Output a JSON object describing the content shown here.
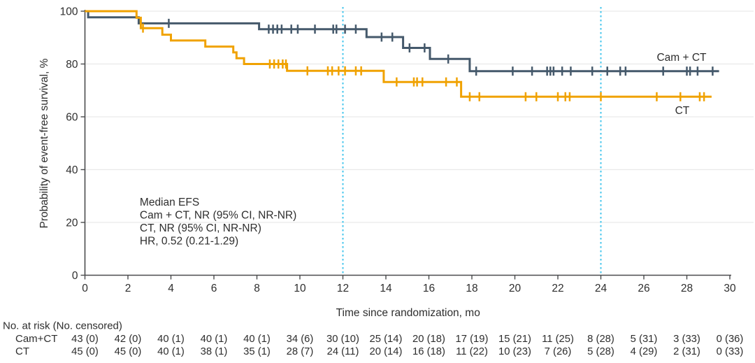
{
  "figure": {
    "background": "#ffffff",
    "text_color": "#2e2e2e",
    "axis_color": "#4a4b4d",
    "gridline_color": "#e9e9e9"
  },
  "chart_data": {
    "type": "km_step",
    "title": "",
    "xlabel": "Time since randomization, mo",
    "ylabel": "Probability of event-free survival, %",
    "xlim": [
      0,
      30
    ],
    "xticks": [
      0,
      2,
      4,
      6,
      8,
      10,
      12,
      14,
      16,
      18,
      20,
      22,
      24,
      26,
      28,
      30
    ],
    "ylim": [
      0,
      100
    ],
    "yticks": [
      0,
      20,
      40,
      60,
      80,
      100
    ],
    "grid": {
      "horizontal_at": [
        20,
        40,
        60,
        80,
        100
      ]
    },
    "reference_lines_x": {
      "values": [
        12,
        24
      ],
      "style": "dotted",
      "color": "#45c6ec"
    },
    "series": [
      {
        "name": "Cam + CT",
        "color": "#45596b",
        "steps": [
          [
            0,
            100
          ],
          [
            0.15,
            97.7
          ],
          [
            2.5,
            95.4
          ],
          [
            8.1,
            93.2
          ],
          [
            13.1,
            90.2
          ],
          [
            14.8,
            86.1
          ],
          [
            16.05,
            81.9
          ],
          [
            17.9,
            77.3
          ]
        ],
        "end_x": 29.5,
        "censor_marks": [
          [
            3.9,
            95.4
          ],
          [
            8.55,
            93.2
          ],
          [
            8.75,
            93.2
          ],
          [
            8.95,
            93.2
          ],
          [
            9.15,
            93.2
          ],
          [
            9.6,
            93.2
          ],
          [
            9.9,
            93.2
          ],
          [
            10.7,
            93.2
          ],
          [
            11.55,
            93.2
          ],
          [
            11.7,
            93.2
          ],
          [
            12.1,
            93.2
          ],
          [
            12.6,
            93.2
          ],
          [
            13.8,
            90.2
          ],
          [
            14.3,
            90.2
          ],
          [
            15.1,
            86.1
          ],
          [
            15.8,
            86.1
          ],
          [
            16.9,
            81.9
          ],
          [
            18.2,
            77.3
          ],
          [
            19.9,
            77.3
          ],
          [
            20.8,
            77.3
          ],
          [
            21.5,
            77.3
          ],
          [
            21.65,
            77.3
          ],
          [
            21.8,
            77.3
          ],
          [
            22.2,
            77.3
          ],
          [
            22.6,
            77.3
          ],
          [
            23.6,
            77.3
          ],
          [
            24.3,
            77.3
          ],
          [
            24.9,
            77.3
          ],
          [
            25.15,
            77.3
          ],
          [
            26.9,
            77.3
          ],
          [
            28.0,
            77.3
          ],
          [
            28.15,
            77.3
          ],
          [
            28.5,
            77.3
          ],
          [
            29.2,
            77.3
          ]
        ],
        "label": {
          "text": "Cam + CT",
          "x": 26.6,
          "y": 81.2
        }
      },
      {
        "name": "CT",
        "color": "#f0a202",
        "steps": [
          [
            0,
            100
          ],
          [
            2.4,
            97.5
          ],
          [
            2.6,
            93.6
          ],
          [
            3.6,
            91.1
          ],
          [
            4.0,
            88.9
          ],
          [
            5.6,
            86.6
          ],
          [
            6.9,
            84.4
          ],
          [
            7.05,
            82.2
          ],
          [
            7.4,
            80.0
          ],
          [
            9.4,
            77.4
          ],
          [
            13.9,
            73.2
          ],
          [
            17.5,
            67.6
          ]
        ],
        "end_x": 29.15,
        "censor_marks": [
          [
            2.7,
            93.6
          ],
          [
            8.6,
            80.0
          ],
          [
            8.8,
            80.0
          ],
          [
            9.0,
            80.0
          ],
          [
            9.2,
            80.0
          ],
          [
            9.35,
            80.0
          ],
          [
            10.35,
            77.4
          ],
          [
            11.3,
            77.4
          ],
          [
            11.5,
            77.4
          ],
          [
            11.8,
            77.4
          ],
          [
            12.1,
            77.4
          ],
          [
            12.6,
            77.4
          ],
          [
            12.85,
            77.4
          ],
          [
            14.5,
            73.2
          ],
          [
            15.3,
            73.2
          ],
          [
            15.45,
            73.2
          ],
          [
            15.7,
            73.2
          ],
          [
            16.8,
            73.2
          ],
          [
            17.3,
            73.2
          ],
          [
            17.9,
            67.6
          ],
          [
            18.35,
            67.6
          ],
          [
            20.5,
            67.6
          ],
          [
            21.0,
            67.6
          ],
          [
            22.0,
            67.6
          ],
          [
            22.35,
            67.6
          ],
          [
            22.55,
            67.6
          ],
          [
            24.0,
            67.6
          ],
          [
            26.6,
            67.6
          ],
          [
            27.7,
            67.6
          ],
          [
            28.6,
            67.6
          ],
          [
            28.8,
            67.6
          ]
        ],
        "label": {
          "text": "CT",
          "x": 27.45,
          "y": 61.0
        }
      }
    ],
    "annotation": {
      "x": 2.55,
      "y_first_line": 26.4,
      "lines": [
        "Median EFS",
        "Cam + CT, NR (95% CI, NR-NR)",
        "CT, NR (95% CI, NR-NR)",
        "HR, 0.52 (0.21-1.29)"
      ]
    }
  },
  "risk_table": {
    "header": "No. at risk (No. censored)",
    "times": [
      0,
      2,
      4,
      6,
      8,
      10,
      12,
      14,
      16,
      18,
      20,
      22,
      24,
      26,
      28,
      30
    ],
    "rows": [
      {
        "label": "Cam+CT",
        "values": [
          "43 (0)",
          "42 (0)",
          "40 (1)",
          "40 (1)",
          "40 (1)",
          "34 (6)",
          "30 (10)",
          "25 (14)",
          "20 (18)",
          "17 (19)",
          "15 (21)",
          "11 (25)",
          "8 (28)",
          "5 (31)",
          "3 (33)",
          "0 (36)"
        ]
      },
      {
        "label": "CT",
        "values": [
          "45 (0)",
          "45 (0)",
          "40 (1)",
          "38 (1)",
          "35 (1)",
          "28 (7)",
          "24 (11)",
          "20 (14)",
          "16 (18)",
          "11 (22)",
          "10 (23)",
          "7 (26)",
          "5 (28)",
          "4 (29)",
          "2 (31)",
          "0 (33)"
        ]
      }
    ]
  }
}
